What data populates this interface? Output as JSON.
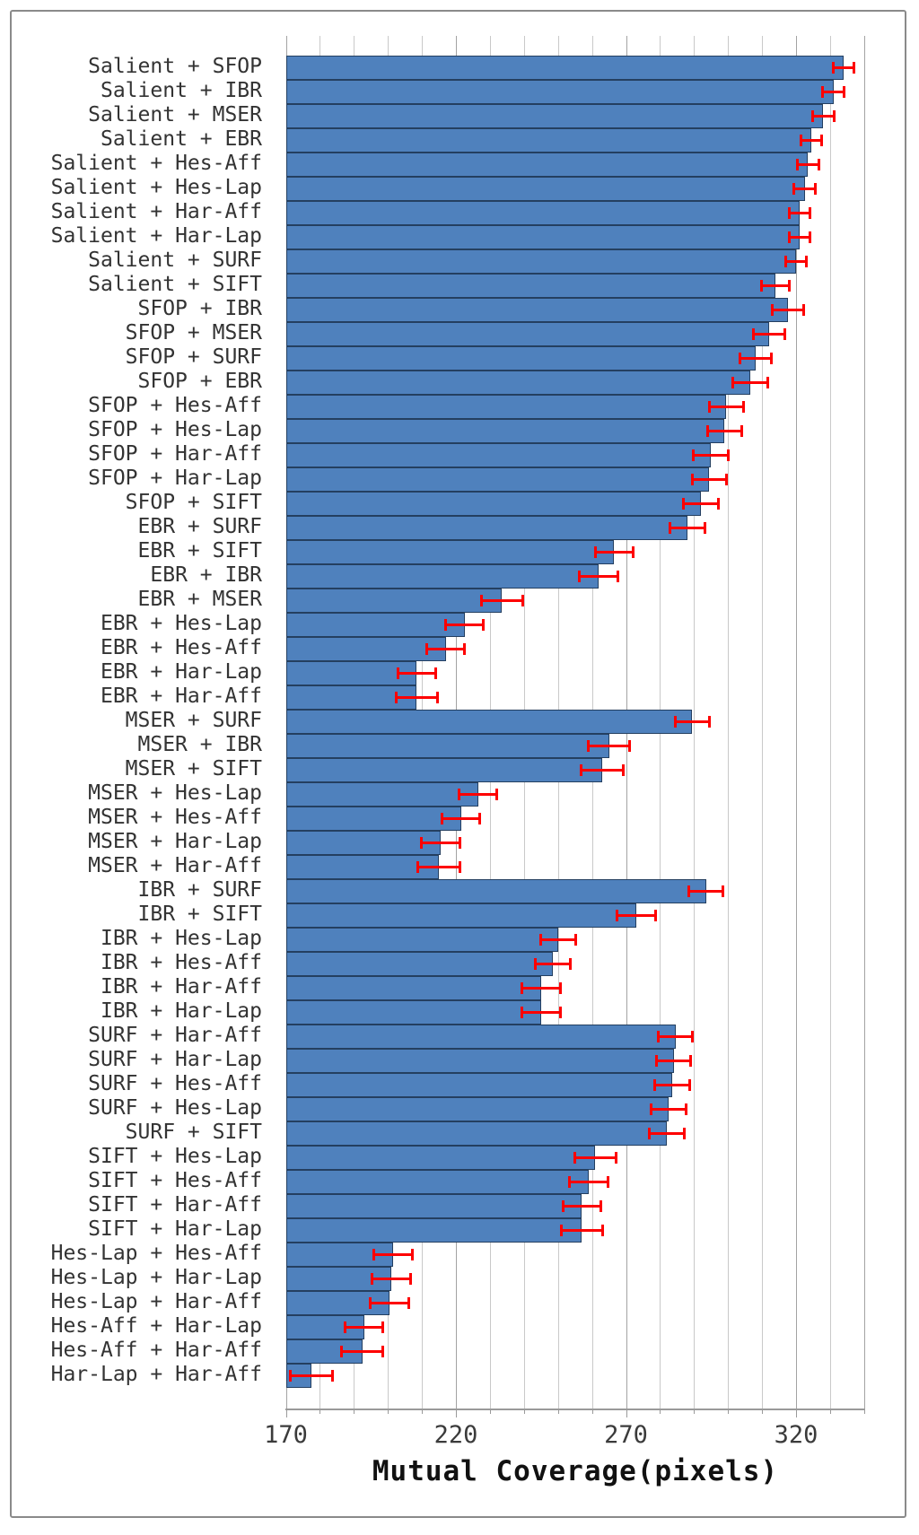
{
  "figure": {
    "background_color": "#FFFFFF",
    "frame_border_color": "#8A8A8A"
  },
  "chart_data": {
    "type": "bar",
    "orientation": "horizontal",
    "title": "",
    "xlabel": "Mutual Coverage(pixels)",
    "ylabel": "",
    "xlim": [
      170,
      340
    ],
    "xticks": [
      170,
      220,
      270,
      320
    ],
    "minor_grid_step": 10,
    "grid": true,
    "legend": false,
    "bar_color": "#4F81BD",
    "bar_border_color": "#243F60",
    "error_bar_color": "#FE0000",
    "gridline_color": "#C9C9C9",
    "axis_line_color": "#9A9A9A",
    "categories": [
      "Salient + SFOP",
      "Salient + IBR",
      "Salient + MSER",
      "Salient + EBR",
      "Salient + Hes-Aff",
      "Salient + Hes-Lap",
      "Salient + Har-Aff",
      "Salient + Har-Lap",
      "Salient + SURF",
      "Salient + SIFT",
      "SFOP + IBR",
      "SFOP + MSER",
      "SFOP + SURF",
      "SFOP + EBR",
      "SFOP + Hes-Aff",
      "SFOP + Hes-Lap",
      "SFOP + Har-Aff",
      "SFOP + Har-Lap",
      "SFOP + SIFT",
      "EBR + SURF",
      "EBR + SIFT",
      "EBR + IBR",
      "EBR + MSER",
      "EBR + Hes-Lap",
      "EBR + Hes-Aff",
      "EBR + Har-Lap",
      "EBR + Har-Aff",
      "MSER + SURF",
      "MSER + IBR",
      "MSER + SIFT",
      "MSER + Hes-Lap",
      "MSER + Hes-Aff",
      "MSER + Har-Lap",
      "MSER + Har-Aff",
      "IBR + SURF",
      "IBR + SIFT",
      "IBR + Hes-Lap",
      "IBR + Hes-Aff",
      "IBR + Har-Aff",
      "IBR + Har-Lap",
      "SURF + Har-Aff",
      "SURF + Har-Lap",
      "SURF + Hes-Aff",
      "SURF + Hes-Lap",
      "SURF + SIFT",
      "SIFT + Hes-Lap",
      "SIFT + Hes-Aff",
      "SIFT + Har-Aff",
      "SIFT + Har-Lap",
      "Hes-Lap + Hes-Aff",
      "Hes-Lap + Har-Lap",
      "Hes-Lap + Har-Aff",
      "Hes-Aff + Har-Lap",
      "Hes-Aff + Har-Aff",
      "Har-Lap + Har-Aff"
    ],
    "values": [
      334,
      331,
      328,
      324.5,
      323.5,
      322.5,
      321,
      321,
      320,
      314,
      317.5,
      312,
      308,
      306.5,
      299.5,
      299,
      295,
      294.5,
      292,
      288,
      266.5,
      262,
      233.5,
      222.5,
      217,
      208.5,
      208.5,
      289.5,
      265,
      263,
      226.5,
      221.5,
      215.5,
      215,
      293.5,
      273,
      250,
      248.5,
      245,
      245,
      284.5,
      284,
      283.5,
      282.5,
      282,
      261,
      259,
      257,
      257,
      201.5,
      201,
      200.5,
      193,
      192.5,
      177.5
    ],
    "errors": [
      3.5,
      3.5,
      3.5,
      3.5,
      3.5,
      3.5,
      3.5,
      3.5,
      3.5,
      4.5,
      5,
      5,
      5,
      5.5,
      5.5,
      5.5,
      5.5,
      5.5,
      5.5,
      5.5,
      6,
      6,
      6.5,
      6,
      6,
      6,
      6.5,
      5.5,
      6.5,
      6.5,
      6,
      6,
      6,
      6.5,
      5.5,
      6,
      5.5,
      5.5,
      6,
      6,
      5.5,
      5.5,
      5.5,
      5.5,
      5.5,
      6.5,
      6,
      6,
      6.5,
      6,
      6,
      6,
      6,
      6.5,
      6.5
    ]
  }
}
